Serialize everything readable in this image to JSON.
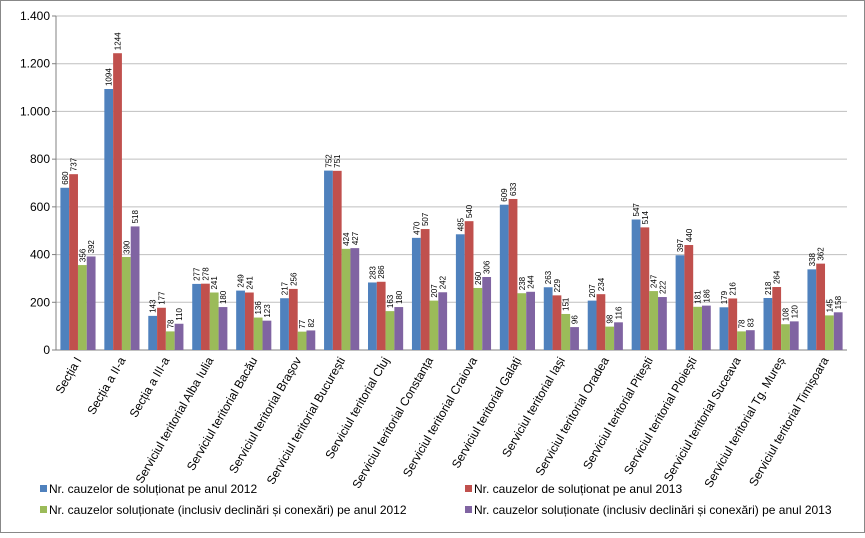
{
  "chart_data": {
    "type": "bar",
    "categories": [
      "Secția I",
      "Secția a II-a",
      "Secția a III-a",
      "Serviciul teritorial Alba Iulia",
      "Serviciul teritorial Bacău",
      "Serviciul teritorial Brașov",
      "Serviciul teritorial București",
      "Serviciul teritorial Cluj",
      "Serviciul teritorial Constanța",
      "Serviciul teritorial Craiova",
      "Serviciul teritorial Galați",
      "Serviciul teritorial Iași",
      "Serviciul teritorial Oradea",
      "Serviciul teritorial Pitești",
      "Serviciul teritorial Ploiești",
      "Serviciul teritorial Suceava",
      "Serviciul teritorial Tg. Mureș",
      "Serviciul teritorial Timișoara"
    ],
    "series": [
      {
        "name": "Nr. cauzelor de soluționat pe anul 2012",
        "color": "#4f81bd",
        "values": [
          680,
          1094,
          143,
          277,
          249,
          217,
          752,
          283,
          470,
          485,
          609,
          263,
          207,
          547,
          397,
          179,
          218,
          338
        ]
      },
      {
        "name": "Nr. cauzelor de soluționat pe anul 2013",
        "color": "#c0504d",
        "values": [
          737,
          1244,
          177,
          278,
          241,
          256,
          751,
          286,
          507,
          540,
          633,
          229,
          234,
          514,
          440,
          216,
          264,
          362
        ]
      },
      {
        "name": "Nr. cauzelor soluționate (inclusiv declinări și conexări) pe anul 2012",
        "color": "#9bbb59",
        "values": [
          356,
          390,
          78,
          241,
          136,
          77,
          424,
          163,
          207,
          260,
          238,
          151,
          98,
          247,
          181,
          78,
          108,
          145
        ]
      },
      {
        "name": "Nr. cauzelor soluționate (inclusiv declinări și conexări) pe anul 2013",
        "color": "#8064a2",
        "values": [
          392,
          518,
          110,
          180,
          123,
          82,
          427,
          180,
          242,
          306,
          244,
          96,
          116,
          222,
          186,
          83,
          120,
          158
        ]
      }
    ],
    "ylim": [
      0,
      1400
    ],
    "yticks": [
      0,
      200,
      400,
      600,
      800,
      {
        "value": 1000,
        "label": "1.000"
      },
      {
        "value": 1200,
        "label": "1.200"
      },
      {
        "value": 1400,
        "label": "1.400"
      }
    ],
    "grid": true,
    "legend": "bottom"
  }
}
